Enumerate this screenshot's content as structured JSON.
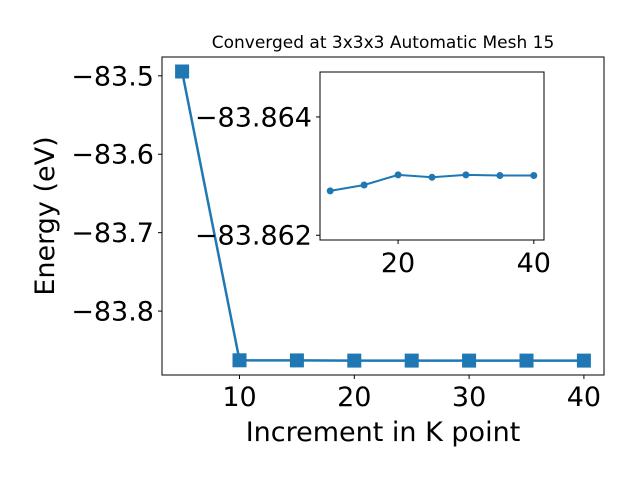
{
  "chart_data": [
    {
      "type": "line",
      "title": "Converged at 3x3x3 Automatic Mesh 15",
      "xlabel": "Increment in K point",
      "ylabel": "Energy (eV)",
      "x": [
        5,
        10,
        15,
        20,
        25,
        30,
        35,
        40
      ],
      "series": [
        {
          "values": [
            -83.4945,
            -83.8628,
            -83.8629,
            -83.8631,
            -83.8631,
            -83.8631,
            -83.8631,
            -83.8631
          ],
          "color": "#1f77b4",
          "marker": "square"
        }
      ],
      "xlim": [
        3.25,
        41.75
      ],
      "ylim": [
        -83.8815,
        -83.476
      ],
      "xticks": [
        10,
        20,
        30,
        40
      ],
      "xtick_labels": [
        "10",
        "20",
        "30",
        "40"
      ],
      "yticks": [
        -83.5,
        -83.6,
        -83.7,
        -83.8
      ],
      "ytick_labels": [
        "−83.5",
        "−83.6",
        "−83.7",
        "−83.8"
      ],
      "grid": false,
      "legend": "none"
    },
    {
      "type": "line",
      "role": "inset",
      "x": [
        10,
        15,
        20,
        25,
        30,
        35,
        40
      ],
      "series": [
        {
          "values": [
            -83.86275,
            -83.86285,
            -83.86302,
            -83.86298,
            -83.86302,
            -83.86301,
            -83.86301
          ],
          "color": "#1f77b4",
          "marker": "circle"
        }
      ],
      "xlim": [
        8.5,
        41.5
      ],
      "ylim": [
        -83.86192,
        -83.86476
      ],
      "xticks": [
        20,
        40
      ],
      "xtick_labels": [
        "20",
        "40"
      ],
      "yticks": [
        -83.864,
        -83.862
      ],
      "ytick_labels": [
        "−83.864",
        "−83.862"
      ],
      "grid": false
    }
  ]
}
